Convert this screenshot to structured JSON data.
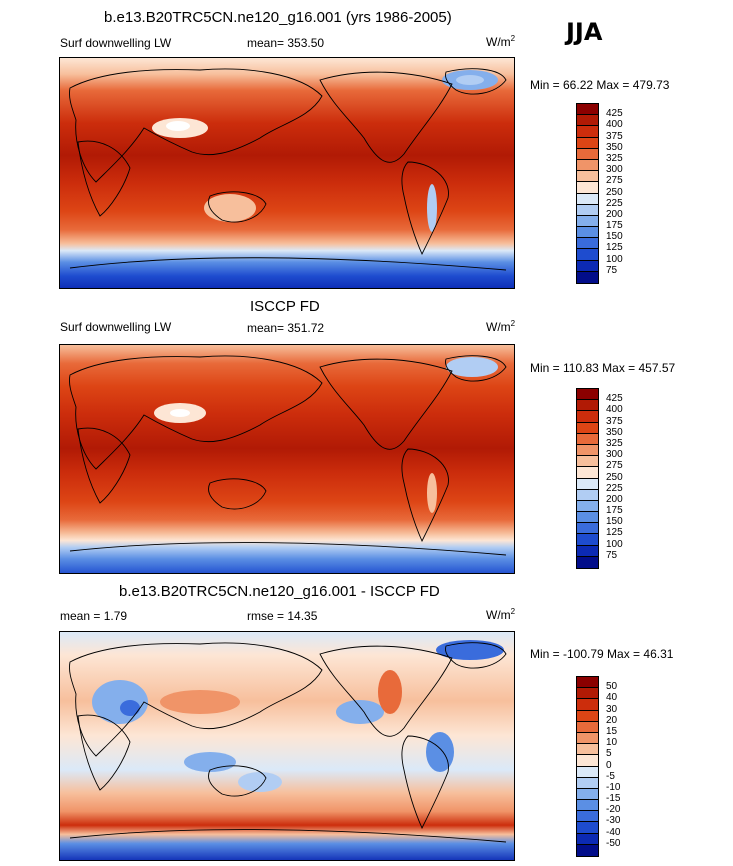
{
  "season": "JJA",
  "units": "W/m",
  "units_sup": "2",
  "panels": [
    {
      "title": "b.e13.B20TRC5CN.ne120_g16.001 (yrs 1986-2005)",
      "left_label": "Surf downwelling LW",
      "center_label": "mean= 353.50",
      "minmax": "Min =  66.22 Max = 479.73",
      "colorbar": {
        "labels": [
          "425",
          "400",
          "375",
          "350",
          "325",
          "300",
          "275",
          "250",
          "225",
          "200",
          "175",
          "150",
          "125",
          "100",
          "75"
        ],
        "colors": [
          "#8b0000",
          "#b11a05",
          "#cc2d0c",
          "#dd4515",
          "#e86a3a",
          "#f09468",
          "#f7bf9c",
          "#fde6d5",
          "#dbe9f8",
          "#b1cdf3",
          "#84afec",
          "#5b8fe4",
          "#3a6cdc",
          "#1e4ccf",
          "#0c2ab4",
          "#020d8a"
        ]
      }
    },
    {
      "title": "ISCCP FD",
      "left_label": "Surf downwelling LW",
      "center_label": "mean= 351.72",
      "minmax": "Min = 110.83 Max = 457.57",
      "colorbar": {
        "labels": [
          "425",
          "400",
          "375",
          "350",
          "325",
          "300",
          "275",
          "250",
          "225",
          "200",
          "175",
          "150",
          "125",
          "100",
          "75"
        ],
        "colors": [
          "#8b0000",
          "#b11a05",
          "#cc2d0c",
          "#dd4515",
          "#e86a3a",
          "#f09468",
          "#f7bf9c",
          "#fde6d5",
          "#dbe9f8",
          "#b1cdf3",
          "#84afec",
          "#5b8fe4",
          "#3a6cdc",
          "#1e4ccf",
          "#0c2ab4",
          "#020d8a"
        ]
      }
    },
    {
      "title": "b.e13.B20TRC5CN.ne120_g16.001 - ISCCP FD",
      "left_label": "mean =   1.79",
      "center_label": "rmse =  14.35",
      "minmax": "Min = -100.79 Max =  46.31",
      "colorbar": {
        "labels": [
          "50",
          "40",
          "30",
          "20",
          "15",
          "10",
          "5",
          "0",
          "-5",
          "-10",
          "-15",
          "-20",
          "-30",
          "-40",
          "-50"
        ],
        "colors": [
          "#8b0000",
          "#b11a05",
          "#cc2d0c",
          "#dd4515",
          "#e86a3a",
          "#f09468",
          "#f7bf9c",
          "#fde6d5",
          "#dbe9f8",
          "#b1cdf3",
          "#84afec",
          "#5b8fe4",
          "#3a6cdc",
          "#1e4ccf",
          "#0c2ab4",
          "#020d8a"
        ]
      }
    }
  ],
  "chart_data": [
    {
      "type": "heatmap",
      "variable": "Surf downwelling LW",
      "season": "JJA",
      "units": "W/m2",
      "mean": 353.5,
      "min": 66.22,
      "max": 479.73,
      "contour_levels": [
        75,
        100,
        125,
        150,
        175,
        200,
        225,
        250,
        275,
        300,
        325,
        350,
        375,
        400,
        425
      ]
    },
    {
      "type": "heatmap",
      "variable": "Surf downwelling LW",
      "season": "JJA",
      "units": "W/m2",
      "mean": 351.72,
      "min": 110.83,
      "max": 457.57,
      "contour_levels": [
        75,
        100,
        125,
        150,
        175,
        200,
        225,
        250,
        275,
        300,
        325,
        350,
        375,
        400,
        425
      ]
    },
    {
      "type": "heatmap",
      "variable": "difference",
      "season": "JJA",
      "units": "W/m2",
      "mean": 1.79,
      "rmse": 14.35,
      "min": -100.79,
      "max": 46.31,
      "contour_levels": [
        -50,
        -40,
        -30,
        -20,
        -15,
        -10,
        -5,
        0,
        5,
        10,
        15,
        20,
        30,
        40,
        50
      ]
    }
  ]
}
